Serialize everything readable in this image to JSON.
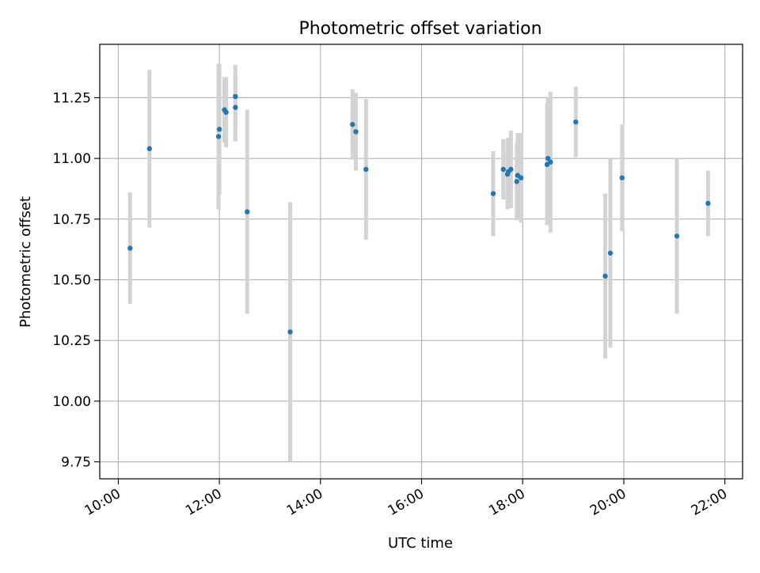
{
  "chart_data": {
    "type": "scatter",
    "title": "Photometric offset variation",
    "xlabel": "UTC time",
    "ylabel": "Photometric offset",
    "x_ticks": [
      "10:00",
      "12:00",
      "14:00",
      "16:00",
      "18:00",
      "20:00",
      "22:00"
    ],
    "y_ticks": [
      "9.75",
      "10.00",
      "10.25",
      "10.50",
      "10.75",
      "11.00",
      "11.25"
    ],
    "xlim": [
      "09:38",
      "22:21"
    ],
    "ylim": [
      9.68,
      11.47
    ],
    "grid": true,
    "colors": {
      "point": "#1f77b4",
      "errorbar": "#d3d3d3",
      "grid": "#b0b0b0"
    },
    "series": [
      {
        "points": [
          {
            "x": "10:14",
            "y": 10.63,
            "yerr": 0.23
          },
          {
            "x": "10:37",
            "y": 11.04,
            "yerr": 0.325
          },
          {
            "x": "11:59",
            "y": 11.09,
            "yerr": 0.3
          },
          {
            "x": "12:00",
            "y": 11.12,
            "yerr": 0.27
          },
          {
            "x": "12:06",
            "y": 11.2,
            "yerr": 0.135
          },
          {
            "x": "12:08",
            "y": 11.19,
            "yerr": 0.145
          },
          {
            "x": "12:19",
            "y": 11.21,
            "yerr": 0.14
          },
          {
            "x": "12:19",
            "y": 11.255,
            "yerr": 0.13
          },
          {
            "x": "12:33",
            "y": 10.78,
            "yerr": 0.42
          },
          {
            "x": "13:24",
            "y": 10.285,
            "yerr": 0.535
          },
          {
            "x": "14:38",
            "y": 11.14,
            "yerr": 0.145
          },
          {
            "x": "14:42",
            "y": 11.11,
            "yerr": 0.16
          },
          {
            "x": "14:54",
            "y": 10.955,
            "yerr": 0.29
          },
          {
            "x": "17:25",
            "y": 10.855,
            "yerr": 0.175
          },
          {
            "x": "17:37",
            "y": 10.955,
            "yerr": 0.125
          },
          {
            "x": "17:42",
            "y": 10.935,
            "yerr": 0.145
          },
          {
            "x": "17:43",
            "y": 10.945,
            "yerr": 0.14
          },
          {
            "x": "17:46",
            "y": 10.955,
            "yerr": 0.16
          },
          {
            "x": "17:53",
            "y": 10.905,
            "yerr": 0.16
          },
          {
            "x": "17:54",
            "y": 10.93,
            "yerr": 0.175
          },
          {
            "x": "17:58",
            "y": 10.92,
            "yerr": 0.185
          },
          {
            "x": "18:29",
            "y": 10.975,
            "yerr": 0.25
          },
          {
            "x": "18:30",
            "y": 11.0,
            "yerr": 0.25
          },
          {
            "x": "18:33",
            "y": 10.985,
            "yerr": 0.29
          },
          {
            "x": "19:03",
            "y": 11.15,
            "yerr": 0.145
          },
          {
            "x": "19:38",
            "y": 10.515,
            "yerr": 0.34
          },
          {
            "x": "19:44",
            "y": 10.61,
            "yerr": 0.39
          },
          {
            "x": "19:58",
            "y": 10.92,
            "yerr": 0.22
          },
          {
            "x": "21:03",
            "y": 10.68,
            "yerr": 0.32
          },
          {
            "x": "21:40",
            "y": 10.815,
            "yerr": 0.135
          }
        ]
      }
    ]
  }
}
